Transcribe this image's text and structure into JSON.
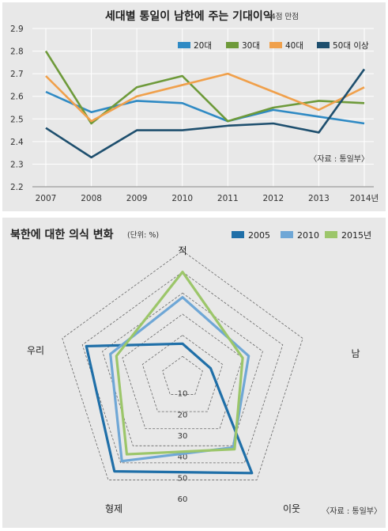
{
  "chart_data": [
    {
      "type": "line",
      "title": "세대별 통일이 남한에 주는 기대이익",
      "note": "*4점 만점",
      "source": "〈자료 : 통일부〉",
      "x": [
        "2007",
        "2008",
        "2009",
        "2010",
        "2011",
        "2012",
        "2013",
        "2014년"
      ],
      "ylim": [
        2.2,
        2.9
      ],
      "yticks": [
        "2.2",
        "2.3",
        "2.4",
        "2.5",
        "2.6",
        "2.7",
        "2.8",
        "2.9"
      ],
      "grid": true,
      "legend": "top-right",
      "series": [
        {
          "name": "20대",
          "color": "#2f8ac4",
          "values": [
            2.62,
            2.53,
            2.58,
            2.57,
            2.49,
            2.54,
            2.51,
            2.48
          ]
        },
        {
          "name": "30대",
          "color": "#6e9a3a",
          "values": [
            2.8,
            2.48,
            2.64,
            2.69,
            2.49,
            2.55,
            2.58,
            2.57
          ]
        },
        {
          "name": "40대",
          "color": "#f0a04b",
          "values": [
            2.69,
            2.49,
            2.6,
            2.65,
            2.7,
            2.62,
            2.54,
            2.64
          ]
        },
        {
          "name": "50대 이상",
          "color": "#1e4f6e",
          "values": [
            2.46,
            2.33,
            2.45,
            2.45,
            2.47,
            2.48,
            2.44,
            2.72
          ]
        }
      ]
    },
    {
      "type": "radar",
      "title": "북한에 대한 의식 변화",
      "unit": "(단위: %)",
      "source": "〈자료 : 통일부〉",
      "axes": [
        "적",
        "남",
        "이웃",
        "형제",
        "우리"
      ],
      "rings": [
        "10",
        "20",
        "30",
        "40",
        "50",
        "60"
      ],
      "range": [
        0,
        60
      ],
      "legend": "top-right",
      "series": [
        {
          "name": "2005",
          "color": "#1f6fa8",
          "values": [
            16,
            14,
            56,
            55,
            48
          ]
        },
        {
          "name": "2010",
          "color": "#6fa7d6",
          "values": [
            38,
            33,
            41,
            49,
            36
          ]
        },
        {
          "name": "2015년",
          "color": "#9cc66a",
          "values": [
            50,
            30,
            42,
            45,
            33
          ]
        }
      ]
    }
  ]
}
